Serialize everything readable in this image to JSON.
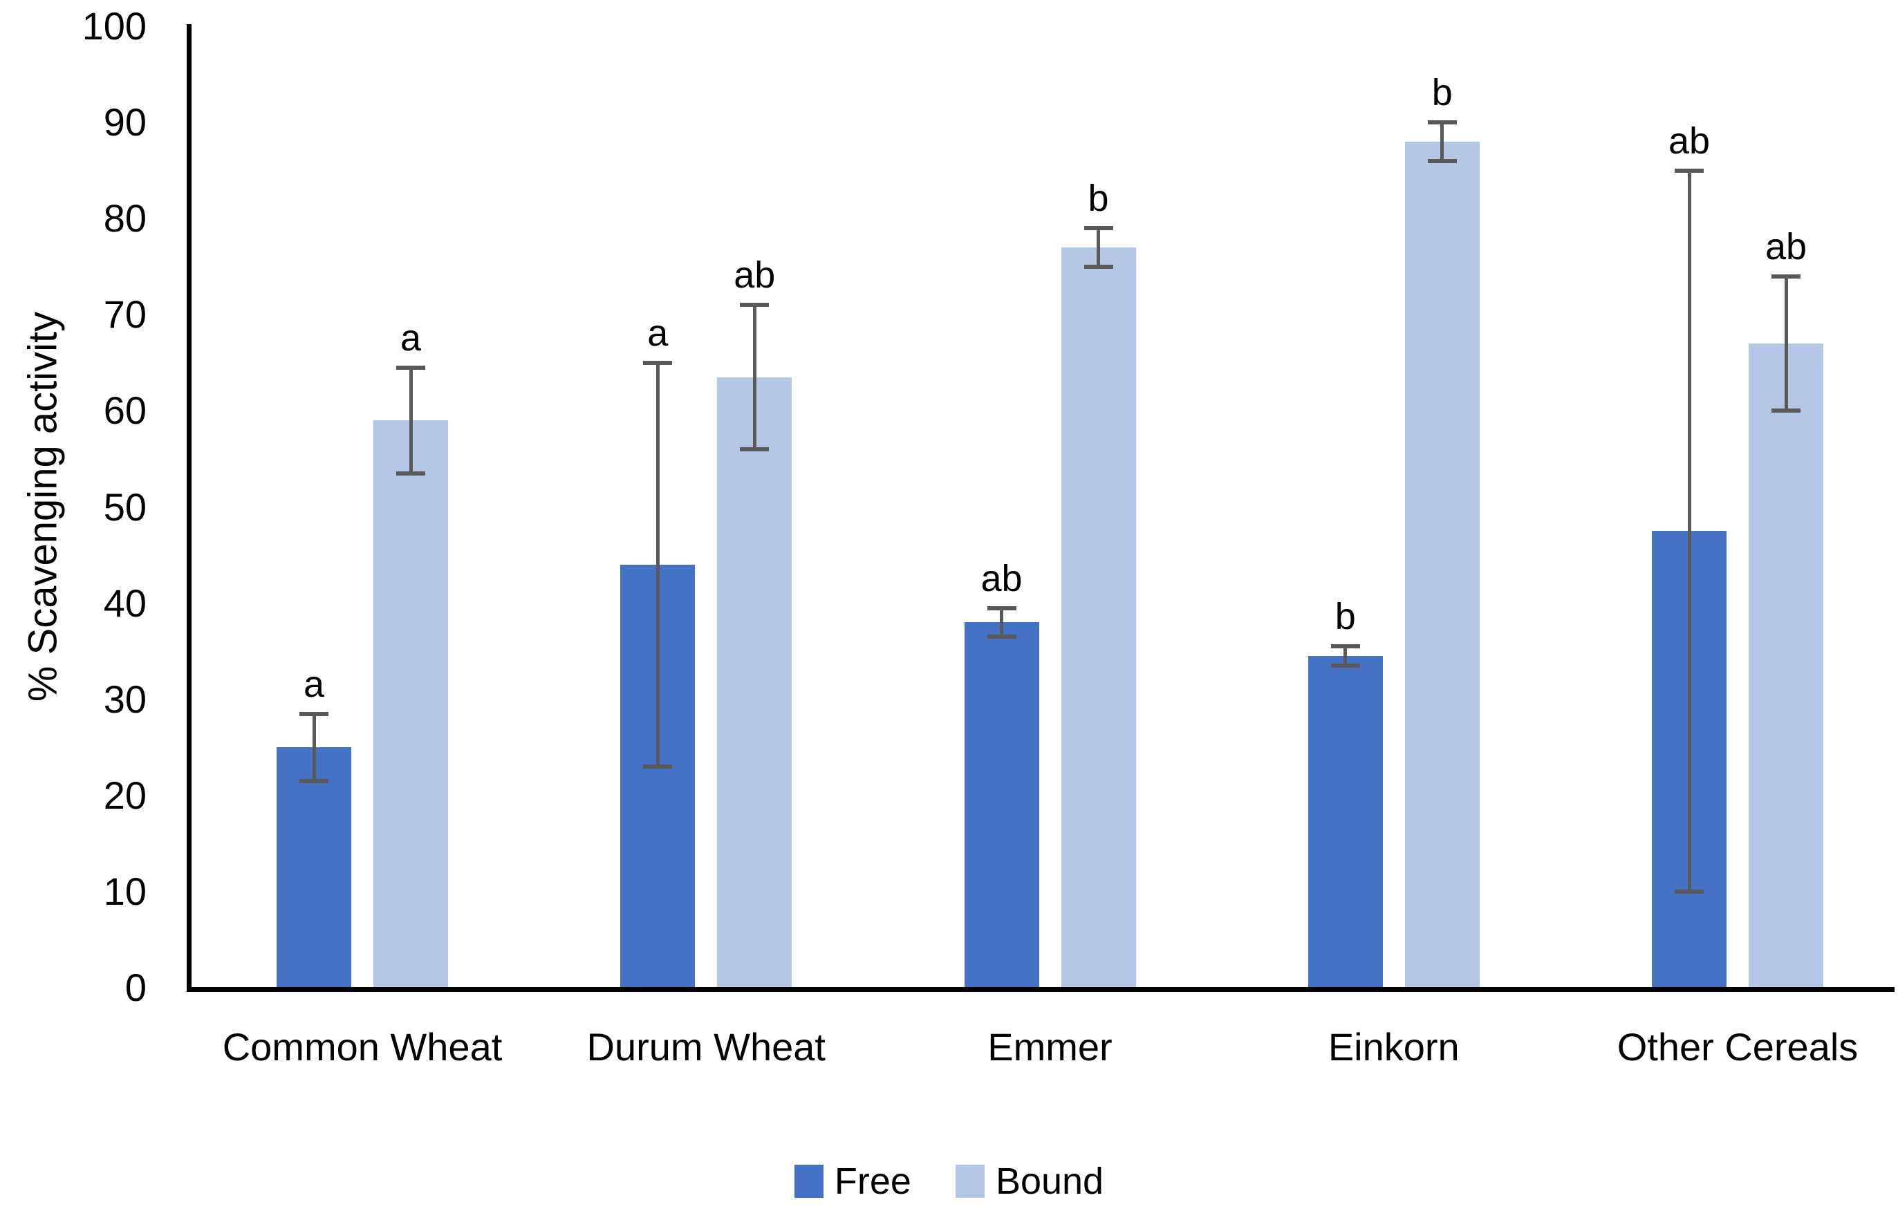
{
  "chart_data": {
    "type": "bar",
    "title": "",
    "xlabel": "",
    "ylabel": "% Scavenging activity",
    "ylim": [
      0,
      100
    ],
    "yticks": [
      0,
      10,
      20,
      30,
      40,
      50,
      60,
      70,
      80,
      90,
      100
    ],
    "grid": false,
    "legend_position": "bottom-center",
    "categories": [
      "Common Wheat",
      "Durum Wheat",
      "Emmer",
      "Einkorn",
      "Other Cereals"
    ],
    "series": [
      {
        "name": "Free",
        "color": "#4472C4",
        "values": [
          25,
          44,
          38,
          34.5,
          47.5
        ],
        "errors": [
          3.5,
          21,
          1.5,
          1,
          37.5
        ],
        "sig_letters": [
          "a",
          "a",
          "ab",
          "b",
          "ab"
        ]
      },
      {
        "name": "Bound",
        "color": "#B4C7E7",
        "values": [
          59,
          63.5,
          77,
          88,
          67
        ],
        "errors": [
          5.5,
          7.5,
          2,
          2,
          7
        ],
        "sig_letters": [
          "a",
          "ab",
          "b",
          "b",
          "ab"
        ]
      }
    ],
    "error_bar_color": "#595959",
    "axis_color": "#000000",
    "text_color": "#000000"
  }
}
